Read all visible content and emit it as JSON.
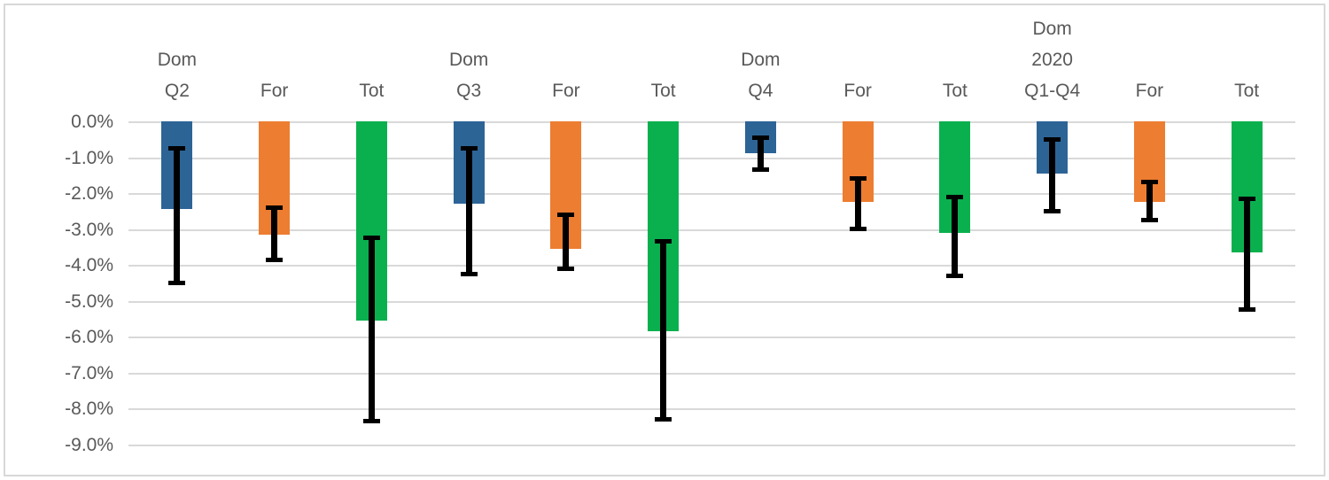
{
  "chart": {
    "background_color": "#FFFFFF",
    "frame_border_color": "#D8D8D8",
    "gridline_color": "#D9D9D9",
    "axis_text_color": "#595959"
  },
  "chart_data": {
    "type": "bar",
    "orientation": "vertical",
    "title": "",
    "xlabel": "",
    "ylabel": "",
    "ylim": [
      -9.9,
      0
    ],
    "grid": true,
    "legend": false,
    "value_unit": "percent",
    "y_ticks": [
      {
        "label": "0.0%",
        "value": 0
      },
      {
        "label": "-1.0%",
        "value": -1
      },
      {
        "label": "-2.0%",
        "value": -2
      },
      {
        "label": "-3.0%",
        "value": -3
      },
      {
        "label": "-4.0%",
        "value": -4
      },
      {
        "label": "-5.0%",
        "value": -5
      },
      {
        "label": "-6.0%",
        "value": -6
      },
      {
        "label": "-7.0%",
        "value": -7
      },
      {
        "label": "-8.0%",
        "value": -8
      },
      {
        "label": "-9.0%",
        "value": -9
      }
    ],
    "series_colors": {
      "dom": "#2D6496",
      "for": "#ED7D31",
      "tot": "#0AB04E"
    },
    "error_bar_color": "#000000",
    "categories": [
      {
        "label_lines": [
          "Dom",
          "Q2"
        ],
        "series": "dom",
        "value_pct": -2.45,
        "error_high_pct": -0.75,
        "error_low_pct": -4.5
      },
      {
        "label_lines": [
          "For"
        ],
        "series": "for",
        "value_pct": -3.15,
        "error_high_pct": -2.4,
        "error_low_pct": -3.85
      },
      {
        "label_lines": [
          "Tot"
        ],
        "series": "tot",
        "value_pct": -5.55,
        "error_high_pct": -3.25,
        "error_low_pct": -8.35
      },
      {
        "label_lines": [
          "Dom",
          "Q3"
        ],
        "series": "dom",
        "value_pct": -2.3,
        "error_high_pct": -0.75,
        "error_low_pct": -4.25
      },
      {
        "label_lines": [
          "For"
        ],
        "series": "for",
        "value_pct": -3.55,
        "error_high_pct": -2.6,
        "error_low_pct": -4.1
      },
      {
        "label_lines": [
          "Tot"
        ],
        "series": "tot",
        "value_pct": -5.85,
        "error_high_pct": -3.35,
        "error_low_pct": -8.3
      },
      {
        "label_lines": [
          "Dom",
          "Q4"
        ],
        "series": "dom",
        "value_pct": -0.9,
        "error_high_pct": -0.45,
        "error_low_pct": -1.35
      },
      {
        "label_lines": [
          "For"
        ],
        "series": "for",
        "value_pct": -2.25,
        "error_high_pct": -1.6,
        "error_low_pct": -3.0
      },
      {
        "label_lines": [
          "Tot"
        ],
        "series": "tot",
        "value_pct": -3.1,
        "error_high_pct": -2.1,
        "error_low_pct": -4.3
      },
      {
        "label_lines": [
          "Dom",
          "2020",
          "Q1-Q4"
        ],
        "series": "dom",
        "value_pct": -1.45,
        "error_high_pct": -0.5,
        "error_low_pct": -2.5
      },
      {
        "label_lines": [
          "For"
        ],
        "series": "for",
        "value_pct": -2.25,
        "error_high_pct": -1.7,
        "error_low_pct": -2.75
      },
      {
        "label_lines": [
          "Tot"
        ],
        "series": "tot",
        "value_pct": -3.65,
        "error_high_pct": -2.15,
        "error_low_pct": -5.25
      }
    ]
  }
}
